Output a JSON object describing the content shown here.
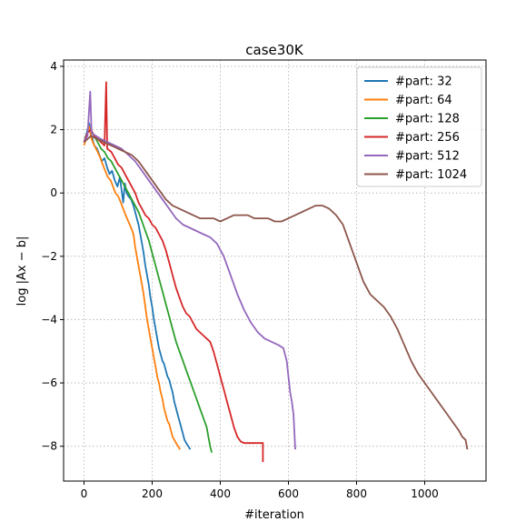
{
  "chart_data": {
    "type": "line",
    "title": "case30K",
    "xlabel": "#iteration",
    "ylabel": "log |Ax − b|",
    "xlim": [
      -60,
      1180
    ],
    "ylim": [
      -9.1,
      4.2
    ],
    "xticks": [
      0,
      200,
      400,
      600,
      800,
      1000
    ],
    "yticks": [
      -8,
      -6,
      -4,
      -2,
      0,
      2,
      4
    ],
    "grid": true,
    "legend_position": "top-right",
    "series": [
      {
        "name": "#part: 32",
        "color": "#1f77b4",
        "points": [
          [
            0,
            1.6
          ],
          [
            8,
            1.9
          ],
          [
            15,
            2.2
          ],
          [
            22,
            1.8
          ],
          [
            30,
            1.5
          ],
          [
            38,
            1.4
          ],
          [
            45,
            1.2
          ],
          [
            52,
            1.0
          ],
          [
            60,
            1.1
          ],
          [
            68,
            0.8
          ],
          [
            75,
            0.6
          ],
          [
            82,
            0.7
          ],
          [
            90,
            0.4
          ],
          [
            98,
            0.2
          ],
          [
            105,
            0.5
          ],
          [
            110,
            0.1
          ],
          [
            115,
            -0.3
          ],
          [
            120,
            0.3
          ],
          [
            125,
            0.0
          ],
          [
            130,
            -0.1
          ],
          [
            138,
            -0.2
          ],
          [
            145,
            -0.4
          ],
          [
            150,
            -0.6
          ],
          [
            155,
            -0.8
          ],
          [
            160,
            -1.0
          ],
          [
            165,
            -1.3
          ],
          [
            170,
            -1.6
          ],
          [
            175,
            -1.9
          ],
          [
            180,
            -2.3
          ],
          [
            185,
            -2.6
          ],
          [
            190,
            -2.9
          ],
          [
            195,
            -3.3
          ],
          [
            200,
            -3.6
          ],
          [
            205,
            -4.0
          ],
          [
            210,
            -4.3
          ],
          [
            215,
            -4.6
          ],
          [
            220,
            -4.9
          ],
          [
            225,
            -5.1
          ],
          [
            230,
            -5.3
          ],
          [
            235,
            -5.4
          ],
          [
            240,
            -5.6
          ],
          [
            245,
            -5.8
          ],
          [
            250,
            -5.9
          ],
          [
            255,
            -6.1
          ],
          [
            260,
            -6.3
          ],
          [
            265,
            -6.6
          ],
          [
            270,
            -6.8
          ],
          [
            275,
            -7.0
          ],
          [
            280,
            -7.2
          ],
          [
            285,
            -7.4
          ],
          [
            290,
            -7.6
          ],
          [
            295,
            -7.8
          ],
          [
            300,
            -7.9
          ],
          [
            306,
            -8.0
          ],
          [
            312,
            -8.1
          ]
        ]
      },
      {
        "name": "#part: 64",
        "color": "#ff7f0e",
        "points": [
          [
            0,
            1.5
          ],
          [
            8,
            1.8
          ],
          [
            15,
            2.1
          ],
          [
            22,
            1.7
          ],
          [
            30,
            1.5
          ],
          [
            40,
            1.3
          ],
          [
            48,
            1.1
          ],
          [
            55,
            0.9
          ],
          [
            62,
            0.7
          ],
          [
            70,
            0.5
          ],
          [
            78,
            0.4
          ],
          [
            85,
            0.2
          ],
          [
            92,
            0.0
          ],
          [
            100,
            -0.1
          ],
          [
            108,
            -0.3
          ],
          [
            115,
            -0.5
          ],
          [
            122,
            -0.7
          ],
          [
            130,
            -0.9
          ],
          [
            138,
            -1.1
          ],
          [
            145,
            -1.3
          ],
          [
            150,
            -1.7
          ],
          [
            155,
            -2.0
          ],
          [
            160,
            -2.3
          ],
          [
            165,
            -2.6
          ],
          [
            170,
            -2.9
          ],
          [
            175,
            -3.2
          ],
          [
            180,
            -3.6
          ],
          [
            185,
            -4.0
          ],
          [
            190,
            -4.3
          ],
          [
            195,
            -4.6
          ],
          [
            200,
            -4.9
          ],
          [
            205,
            -5.2
          ],
          [
            210,
            -5.5
          ],
          [
            215,
            -5.8
          ],
          [
            220,
            -6.0
          ],
          [
            225,
            -6.3
          ],
          [
            230,
            -6.5
          ],
          [
            235,
            -6.8
          ],
          [
            240,
            -7.0
          ],
          [
            245,
            -7.2
          ],
          [
            250,
            -7.3
          ],
          [
            255,
            -7.5
          ],
          [
            260,
            -7.7
          ],
          [
            265,
            -7.8
          ],
          [
            270,
            -7.9
          ],
          [
            276,
            -8.0
          ],
          [
            282,
            -8.1
          ]
        ]
      },
      {
        "name": "#part: 128",
        "color": "#2ca02c",
        "points": [
          [
            0,
            1.6
          ],
          [
            10,
            1.9
          ],
          [
            20,
            2.0
          ],
          [
            30,
            1.8
          ],
          [
            40,
            1.6
          ],
          [
            50,
            1.4
          ],
          [
            60,
            1.3
          ],
          [
            70,
            1.1
          ],
          [
            80,
            1.0
          ],
          [
            90,
            0.8
          ],
          [
            100,
            0.6
          ],
          [
            110,
            0.4
          ],
          [
            120,
            0.2
          ],
          [
            130,
            0.0
          ],
          [
            140,
            -0.2
          ],
          [
            150,
            -0.4
          ],
          [
            160,
            -0.6
          ],
          [
            170,
            -0.9
          ],
          [
            180,
            -1.2
          ],
          [
            190,
            -1.5
          ],
          [
            200,
            -1.9
          ],
          [
            210,
            -2.3
          ],
          [
            220,
            -2.7
          ],
          [
            230,
            -3.1
          ],
          [
            240,
            -3.5
          ],
          [
            250,
            -3.9
          ],
          [
            260,
            -4.3
          ],
          [
            270,
            -4.7
          ],
          [
            280,
            -5.0
          ],
          [
            290,
            -5.3
          ],
          [
            300,
            -5.6
          ],
          [
            310,
            -5.9
          ],
          [
            320,
            -6.2
          ],
          [
            330,
            -6.5
          ],
          [
            340,
            -6.8
          ],
          [
            350,
            -7.1
          ],
          [
            360,
            -7.4
          ],
          [
            365,
            -7.7
          ],
          [
            370,
            -8.0
          ],
          [
            375,
            -8.2
          ]
        ]
      },
      {
        "name": "#part: 256",
        "color": "#d62728",
        "points": [
          [
            0,
            1.6
          ],
          [
            10,
            1.9
          ],
          [
            20,
            2.0
          ],
          [
            30,
            1.8
          ],
          [
            40,
            1.7
          ],
          [
            50,
            1.6
          ],
          [
            60,
            1.5
          ],
          [
            65,
            3.5
          ],
          [
            68,
            1.4
          ],
          [
            80,
            1.3
          ],
          [
            90,
            1.1
          ],
          [
            100,
            0.9
          ],
          [
            110,
            0.8
          ],
          [
            120,
            0.6
          ],
          [
            130,
            0.4
          ],
          [
            140,
            0.2
          ],
          [
            150,
            0.0
          ],
          [
            160,
            -0.3
          ],
          [
            170,
            -0.5
          ],
          [
            180,
            -0.7
          ],
          [
            190,
            -0.8
          ],
          [
            200,
            -1.0
          ],
          [
            210,
            -1.1
          ],
          [
            220,
            -1.3
          ],
          [
            230,
            -1.5
          ],
          [
            240,
            -1.8
          ],
          [
            250,
            -2.2
          ],
          [
            260,
            -2.6
          ],
          [
            270,
            -3.0
          ],
          [
            280,
            -3.3
          ],
          [
            290,
            -3.6
          ],
          [
            300,
            -3.8
          ],
          [
            310,
            -3.9
          ],
          [
            320,
            -4.1
          ],
          [
            330,
            -4.3
          ],
          [
            340,
            -4.4
          ],
          [
            350,
            -4.5
          ],
          [
            360,
            -4.6
          ],
          [
            370,
            -4.7
          ],
          [
            380,
            -5.0
          ],
          [
            390,
            -5.4
          ],
          [
            400,
            -5.8
          ],
          [
            410,
            -6.2
          ],
          [
            420,
            -6.6
          ],
          [
            430,
            -7.0
          ],
          [
            440,
            -7.4
          ],
          [
            450,
            -7.7
          ],
          [
            460,
            -7.85
          ],
          [
            470,
            -7.9
          ],
          [
            490,
            -7.9
          ],
          [
            510,
            -7.9
          ],
          [
            525,
            -7.9
          ],
          [
            525,
            -8.5
          ]
        ]
      },
      {
        "name": "#part: 512",
        "color": "#9467bd",
        "points": [
          [
            0,
            1.6
          ],
          [
            10,
            1.8
          ],
          [
            18,
            3.2
          ],
          [
            22,
            1.9
          ],
          [
            35,
            1.8
          ],
          [
            50,
            1.7
          ],
          [
            70,
            1.6
          ],
          [
            90,
            1.5
          ],
          [
            110,
            1.4
          ],
          [
            130,
            1.2
          ],
          [
            150,
            1.0
          ],
          [
            170,
            0.7
          ],
          [
            190,
            0.4
          ],
          [
            210,
            0.1
          ],
          [
            230,
            -0.2
          ],
          [
            250,
            -0.5
          ],
          [
            270,
            -0.8
          ],
          [
            290,
            -1.0
          ],
          [
            310,
            -1.1
          ],
          [
            330,
            -1.2
          ],
          [
            350,
            -1.3
          ],
          [
            370,
            -1.4
          ],
          [
            390,
            -1.6
          ],
          [
            410,
            -2.0
          ],
          [
            430,
            -2.6
          ],
          [
            450,
            -3.2
          ],
          [
            470,
            -3.7
          ],
          [
            490,
            -4.1
          ],
          [
            510,
            -4.4
          ],
          [
            530,
            -4.6
          ],
          [
            550,
            -4.7
          ],
          [
            570,
            -4.8
          ],
          [
            585,
            -4.9
          ],
          [
            595,
            -5.3
          ],
          [
            600,
            -5.8
          ],
          [
            605,
            -6.3
          ],
          [
            610,
            -6.6
          ],
          [
            615,
            -7.0
          ],
          [
            620,
            -8.1
          ]
        ]
      },
      {
        "name": "#part: 1024",
        "color": "#8c564b",
        "points": [
          [
            0,
            1.6
          ],
          [
            20,
            1.8
          ],
          [
            40,
            1.7
          ],
          [
            60,
            1.6
          ],
          [
            80,
            1.5
          ],
          [
            100,
            1.4
          ],
          [
            120,
            1.3
          ],
          [
            140,
            1.2
          ],
          [
            160,
            1.0
          ],
          [
            180,
            0.7
          ],
          [
            200,
            0.4
          ],
          [
            220,
            0.1
          ],
          [
            240,
            -0.2
          ],
          [
            260,
            -0.4
          ],
          [
            280,
            -0.5
          ],
          [
            300,
            -0.6
          ],
          [
            320,
            -0.7
          ],
          [
            340,
            -0.8
          ],
          [
            360,
            -0.8
          ],
          [
            380,
            -0.8
          ],
          [
            400,
            -0.9
          ],
          [
            420,
            -0.8
          ],
          [
            440,
            -0.7
          ],
          [
            460,
            -0.7
          ],
          [
            480,
            -0.7
          ],
          [
            500,
            -0.8
          ],
          [
            520,
            -0.8
          ],
          [
            540,
            -0.8
          ],
          [
            560,
            -0.9
          ],
          [
            580,
            -0.9
          ],
          [
            600,
            -0.8
          ],
          [
            620,
            -0.7
          ],
          [
            640,
            -0.6
          ],
          [
            660,
            -0.5
          ],
          [
            680,
            -0.4
          ],
          [
            700,
            -0.4
          ],
          [
            720,
            -0.5
          ],
          [
            740,
            -0.7
          ],
          [
            760,
            -1.0
          ],
          [
            780,
            -1.6
          ],
          [
            800,
            -2.2
          ],
          [
            820,
            -2.8
          ],
          [
            840,
            -3.2
          ],
          [
            860,
            -3.4
          ],
          [
            880,
            -3.6
          ],
          [
            900,
            -3.9
          ],
          [
            920,
            -4.3
          ],
          [
            940,
            -4.8
          ],
          [
            960,
            -5.3
          ],
          [
            980,
            -5.7
          ],
          [
            1000,
            -6.0
          ],
          [
            1020,
            -6.3
          ],
          [
            1040,
            -6.6
          ],
          [
            1060,
            -6.9
          ],
          [
            1080,
            -7.2
          ],
          [
            1100,
            -7.5
          ],
          [
            1110,
            -7.7
          ],
          [
            1120,
            -7.8
          ],
          [
            1125,
            -8.1
          ]
        ]
      }
    ]
  }
}
